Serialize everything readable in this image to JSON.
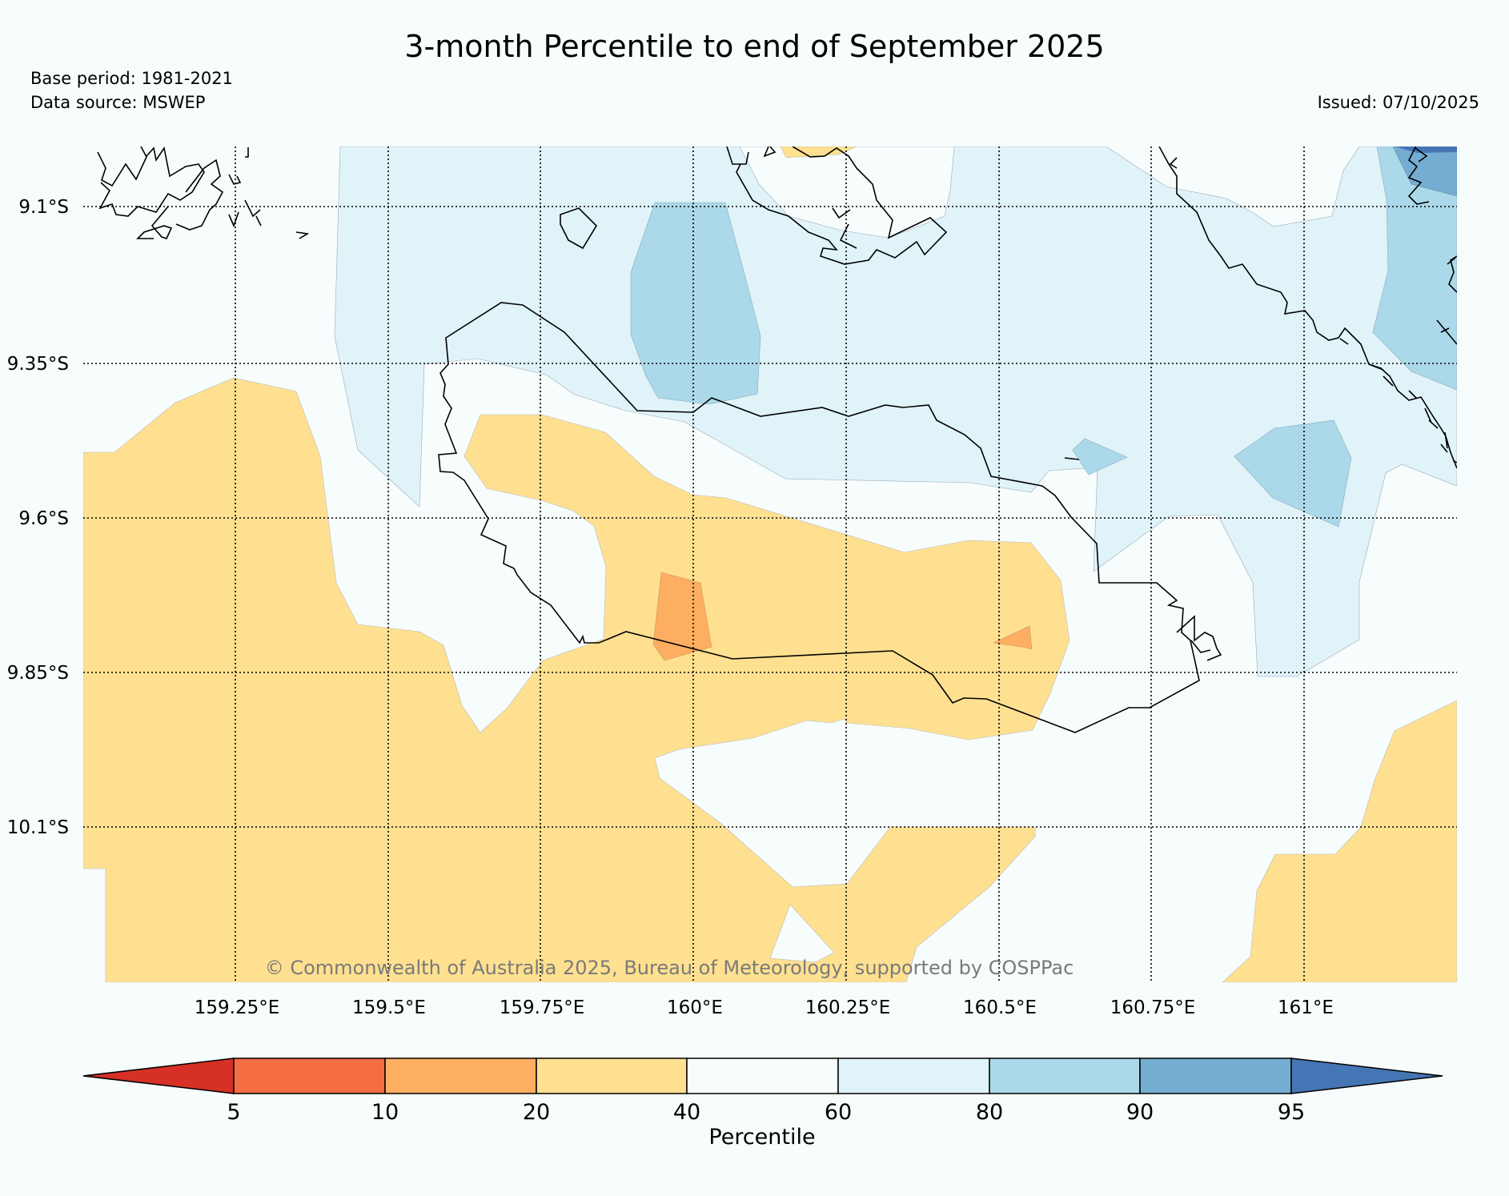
{
  "title": "3-month Percentile to end of September 2025",
  "base_period": "Base period: 1981-2021",
  "data_source": "Data source: MSWEP",
  "issued": "Issued: 07/10/2025",
  "copyright": "© Commonwealth of Australia 2025, Bureau of Meteorology, supported by COSPPac",
  "map": {
    "lat_labels": [
      "9.1°S",
      "9.35°S",
      "9.6°S",
      "9.85°S",
      "10.1°S"
    ],
    "lon_labels": [
      "159.25°E",
      "159.5°E",
      "159.75°E",
      "160°E",
      "160.25°E",
      "160.5°E",
      "160.75°E",
      "161°E"
    ]
  },
  "colorbar": {
    "label": "Percentile",
    "ticks": [
      "5",
      "10",
      "20",
      "40",
      "60",
      "80",
      "90",
      "95"
    ],
    "colors": {
      "lt5": "#d73027",
      "c5_10": "#f46d43",
      "c10_20": "#fdae61",
      "c20_40": "#fee090",
      "c40_60": "#f7fcfc",
      "c60_80": "#e0f3f8",
      "c80_90": "#abd9e9",
      "c90_95": "#74add1",
      "gt95": "#4575b4"
    }
  }
}
